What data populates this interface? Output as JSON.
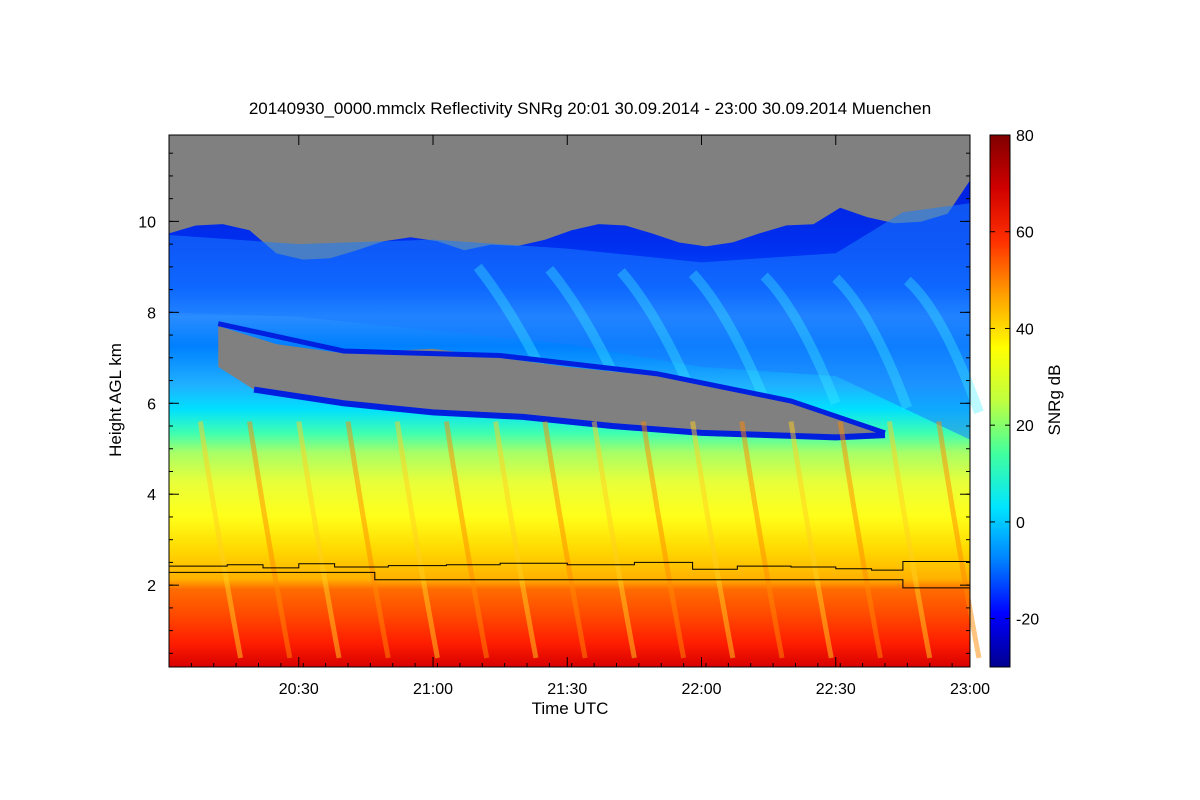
{
  "chart_data": {
    "type": "heatmap",
    "title": "20140930_0000.mmclx Reflectivity SNRg   20:01 30.09.2014 - 23:00 30.09.2014 Muenchen",
    "xlabel": "Time UTC",
    "ylabel": "Height AGL km",
    "colorbar_label": "SNRg dB",
    "x_range": [
      "20:01",
      "23:00"
    ],
    "x_ticks": [
      "20:30",
      "21:00",
      "21:30",
      "22:00",
      "22:30",
      "23:00"
    ],
    "x_tick_minutes": [
      30,
      60,
      90,
      120,
      150,
      180
    ],
    "x_min_minutes": 1,
    "x_max_minutes": 180,
    "ylim": [
      0.2,
      11.9
    ],
    "y_ticks": [
      "2",
      "4",
      "6",
      "8",
      "10"
    ],
    "y_tick_values": [
      2,
      4,
      6,
      8,
      10
    ],
    "colorbar_range": [
      -30,
      80
    ],
    "colorbar_ticks": [
      "-20",
      "0",
      "20",
      "40",
      "60",
      "80"
    ],
    "colorbar_tick_values": [
      -20,
      0,
      20,
      40,
      60,
      80
    ],
    "colormap": [
      "#00008f",
      "#0000ff",
      "#0080ff",
      "#00e5ff",
      "#40ff9f",
      "#bfff40",
      "#ffff00",
      "#ff9f00",
      "#ff3000",
      "#d00000",
      "#800000"
    ],
    "no_signal_color": "#808080",
    "series": [
      {
        "description": "melting layer upper trace",
        "points": [
          [
            1,
            2.42
          ],
          [
            14,
            2.45
          ],
          [
            22,
            2.38
          ],
          [
            30,
            2.47
          ],
          [
            38,
            2.4
          ],
          [
            50,
            2.43
          ],
          [
            63,
            2.45
          ],
          [
            75,
            2.48
          ],
          [
            90,
            2.45
          ],
          [
            105,
            2.5
          ],
          [
            118,
            2.35
          ],
          [
            128,
            2.42
          ],
          [
            140,
            2.4
          ],
          [
            150,
            2.36
          ],
          [
            158,
            2.33
          ],
          [
            165,
            2.52
          ],
          [
            180,
            2.5
          ]
        ]
      },
      {
        "description": "melting layer lower trace",
        "points": [
          [
            1,
            2.28
          ],
          [
            46,
            2.28
          ],
          [
            47,
            2.12
          ],
          [
            164,
            2.12
          ],
          [
            165,
            1.94
          ],
          [
            180,
            1.94
          ]
        ]
      }
    ],
    "regions": [
      {
        "description": "upper cloud layer base (approx.)",
        "time_minutes": [
          1,
          30,
          60,
          90,
          120,
          150,
          180
        ],
        "base_km": [
          8.0,
          7.7,
          7.3,
          6.7,
          6.1,
          5.5,
          5.2
        ]
      },
      {
        "description": "gap between cloud layers (approx.)",
        "time_minutes": [
          12,
          60,
          100,
          140,
          160
        ],
        "top_km": [
          7.7,
          7.2,
          6.7,
          6.1,
          5.4
        ],
        "bottom_km": [
          6.2,
          5.9,
          5.7,
          5.3,
          5.3
        ]
      },
      {
        "description": "melting layer / bright band",
        "height_km": [
          0.2,
          2.6
        ],
        "snr_db": [
          45,
          65
        ]
      }
    ]
  }
}
